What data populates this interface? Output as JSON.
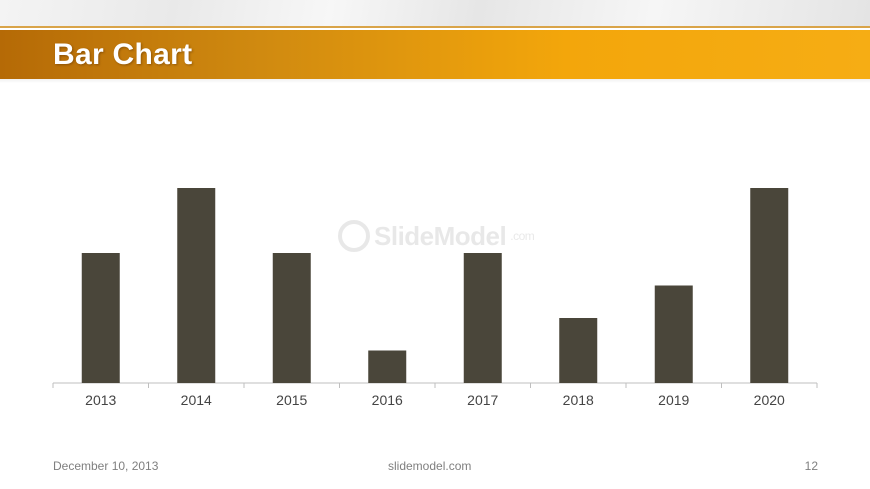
{
  "slide": {
    "title": "Bar Chart",
    "footer_date": "December 10, 2013",
    "footer_site": "slidemodel.com",
    "page_number": "12",
    "watermark": {
      "brand": "SlideModel",
      "suffix": ".com"
    }
  },
  "colors": {
    "bar": "#4a463a",
    "title_band_start": "#b56a06",
    "title_band_end": "#f6ad14",
    "axis": "#bfbfbf"
  },
  "chart_data": {
    "type": "bar",
    "title": "",
    "xlabel": "",
    "ylabel": "",
    "categories": [
      "2013",
      "2014",
      "2015",
      "2016",
      "2017",
      "2018",
      "2019",
      "2020"
    ],
    "values": [
      4,
      6,
      4,
      1,
      4,
      2,
      3,
      6
    ],
    "ylim": [
      0,
      7
    ],
    "grid": false,
    "legend": "none"
  }
}
